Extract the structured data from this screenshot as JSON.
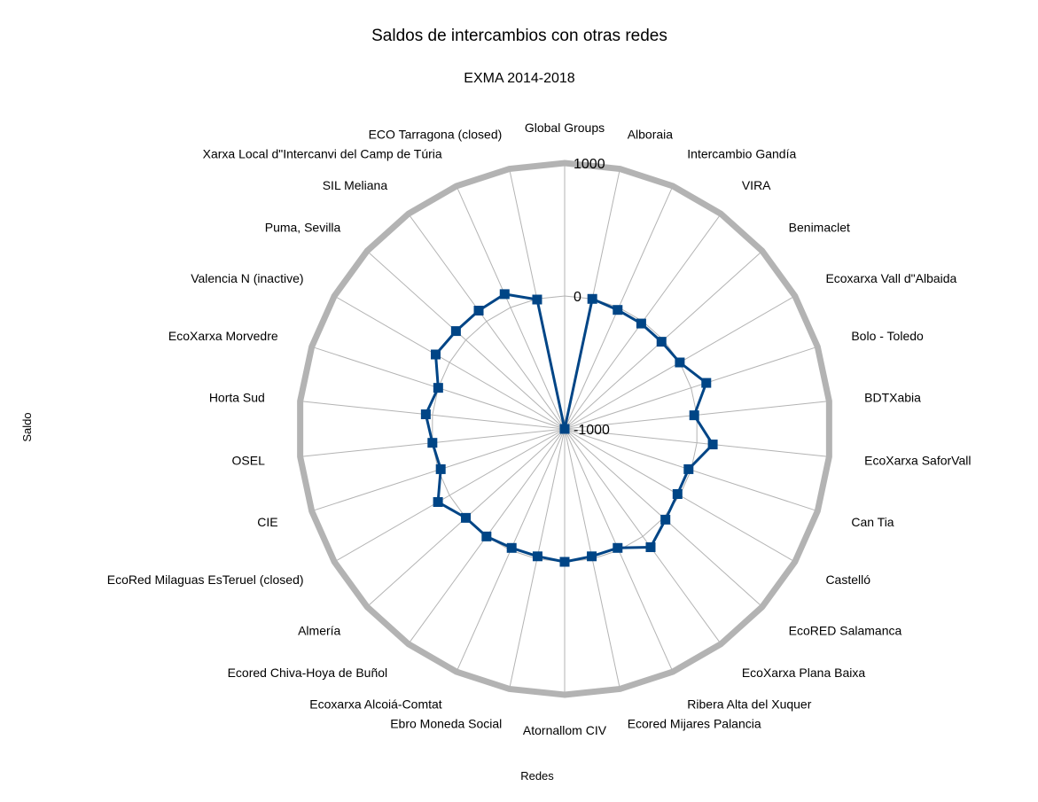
{
  "chart_data": {
    "type": "radar",
    "title": "Saldos de intercambios con otras redes",
    "subtitle": "EXMA 2014-2018",
    "xlabel": "Redes",
    "ylabel": "Saldo",
    "rlim": [
      -1000,
      1000
    ],
    "ticks": [
      "-1000",
      "0",
      "1000"
    ],
    "grid": true,
    "legend": "none",
    "colors": {
      "series": "#004586",
      "outer": "#b3b3b3",
      "grid": "#b3b3b3"
    },
    "categories": [
      "Global Groups",
      "Alboraia",
      "Intercambio Gandía",
      "VIRA",
      "Benimaclet",
      "Ecoxarxa Vall d\"Albaida",
      "Bolo - Toledo",
      "BDTXabia",
      "EcoXarxa SaforVall",
      "Can Tia",
      "Castelló",
      "EcoRED Salamanca",
      "EcoXarxa Plana Baixa",
      "Ribera Alta del Xuquer",
      "Ecored Mijares Palancia",
      "Atornallom CIV",
      "Ebro Moneda Social",
      "Ecoxarxa Alcoiá-Comtat",
      "Ecored Chiva-Hoya de Buñol",
      "Almería",
      "EcoRed Milaguas EsTeruel (closed)",
      "CIE",
      "OSEL",
      "Horta Sud",
      "EcoXarxa Morvedre",
      "Valencia N (inactive)",
      "Puma, Sevilla",
      "SIL Meliana",
      "Xarxa Local d\"Intercanvi del Camp de Túria",
      "ECO Tarragona (closed)"
    ],
    "series": [
      {
        "values": [
          -1000,
          0,
          -20,
          -20,
          -20,
          0,
          120,
          -20,
          120,
          -20,
          -20,
          20,
          100,
          -20,
          -20,
          0,
          -20,
          -20,
          0,
          0,
          100,
          -20,
          0,
          50,
          0,
          120,
          100,
          100,
          110,
          -5
        ]
      }
    ]
  }
}
